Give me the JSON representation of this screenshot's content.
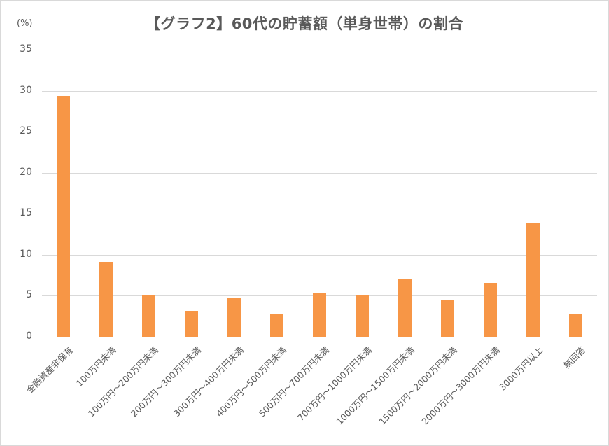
{
  "chart_data": {
    "type": "bar",
    "title": "【グラフ2】60代の貯蓄額（単身世帯）の割合",
    "xlabel": "",
    "ylabel": "(%)",
    "ylim": [
      0,
      35
    ],
    "yticks": [
      0,
      5,
      10,
      15,
      20,
      25,
      30,
      35
    ],
    "grid": true,
    "legend": null,
    "bar_color": "#F79646",
    "categories": [
      "金融資産非保有",
      "100万円未満",
      "100万円～200万円未満",
      "200万円～300万円未満",
      "300万円～400万円未満",
      "400万円～500万円未満",
      "500万円～700万円未満",
      "700万円～1000万円未満",
      "1000万円～1500万円未満",
      "1500万円～2000万円未満",
      "2000万円～3000万円未満",
      "3000万円以上",
      "無回答"
    ],
    "values": [
      29.4,
      9.1,
      5.0,
      3.2,
      4.7,
      2.8,
      5.3,
      5.1,
      7.1,
      4.5,
      6.6,
      13.8,
      2.7
    ]
  },
  "header": {
    "title": "【グラフ2】60代の貯蓄額（単身世帯）の割合",
    "unit_label": "(%)"
  }
}
